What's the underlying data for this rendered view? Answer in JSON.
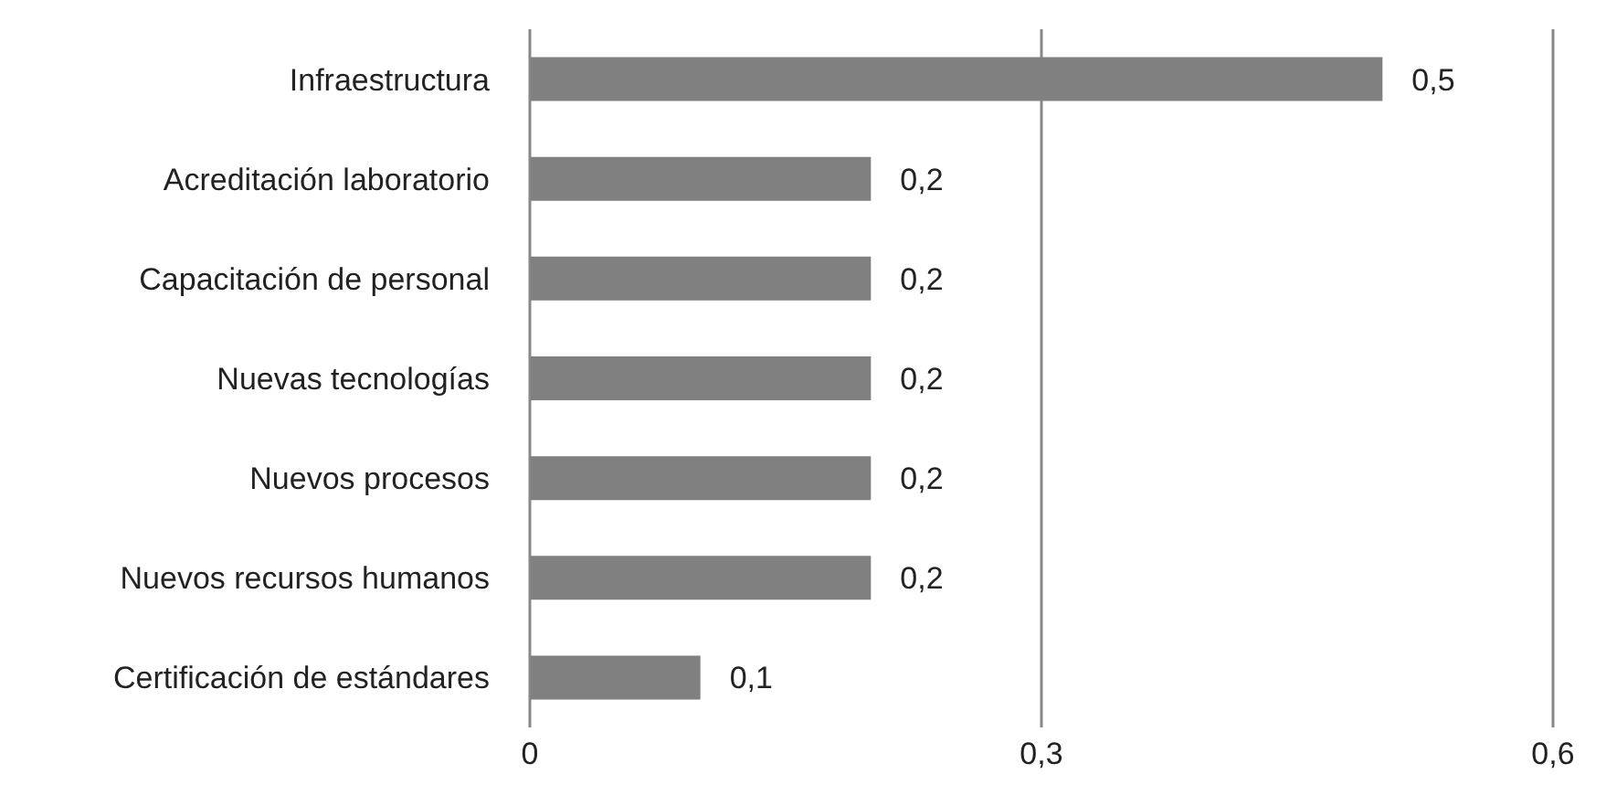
{
  "chart_data": {
    "type": "bar",
    "orientation": "horizontal",
    "categories": [
      "Infraestructura",
      "Acreditación laboratorio",
      "Capacitación de personal",
      "Nuevas tecnologías",
      "Nuevos procesos",
      "Nuevos recursos humanos",
      "Certificación de estándares"
    ],
    "values": [
      0.5,
      0.2,
      0.2,
      0.2,
      0.2,
      0.2,
      0.1
    ],
    "value_labels": [
      "0,5",
      "0,2",
      "0,2",
      "0,2",
      "0,2",
      "0,2",
      "0,1"
    ],
    "color": "#808080",
    "xlim": [
      0,
      0.6
    ],
    "xticks": [
      {
        "value": 0,
        "label": "0"
      },
      {
        "value": 0.3,
        "label": "0,3"
      },
      {
        "value": 0.6,
        "label": "0,6"
      }
    ],
    "grid": "x"
  }
}
